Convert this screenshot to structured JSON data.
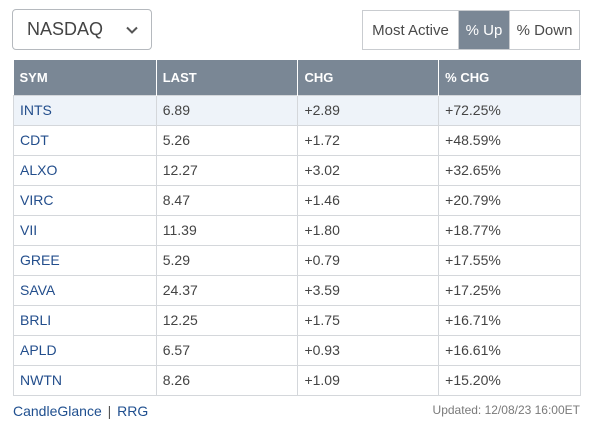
{
  "exchange_select": {
    "value": "NASDAQ"
  },
  "toggle": {
    "most_active": "Most Active",
    "pct_up": "% Up",
    "pct_down": "% Down",
    "active": "pct_up"
  },
  "table": {
    "headers": {
      "sym": "SYM",
      "last": "LAST",
      "chg": "CHG",
      "pct_chg": "% CHG"
    },
    "rows": [
      {
        "sym": "INTS",
        "last": "6.89",
        "chg": "+2.89",
        "pct": "+72.25%"
      },
      {
        "sym": "CDT",
        "last": "5.26",
        "chg": "+1.72",
        "pct": "+48.59%"
      },
      {
        "sym": "ALXO",
        "last": "12.27",
        "chg": "+3.02",
        "pct": "+32.65%"
      },
      {
        "sym": "VIRC",
        "last": "8.47",
        "chg": "+1.46",
        "pct": "+20.79%"
      },
      {
        "sym": "VII",
        "last": "11.39",
        "chg": "+1.80",
        "pct": "+18.77%"
      },
      {
        "sym": "GREE",
        "last": "5.29",
        "chg": "+0.79",
        "pct": "+17.55%"
      },
      {
        "sym": "SAVA",
        "last": "24.37",
        "chg": "+3.59",
        "pct": "+17.25%"
      },
      {
        "sym": "BRLI",
        "last": "12.25",
        "chg": "+1.75",
        "pct": "+16.71%"
      },
      {
        "sym": "APLD",
        "last": "6.57",
        "chg": "+0.93",
        "pct": "+16.61%"
      },
      {
        "sym": "NWTN",
        "last": "8.26",
        "chg": "+1.09",
        "pct": "+15.20%"
      }
    ]
  },
  "footer": {
    "candleglance": "CandleGlance",
    "separator": "|",
    "rrg": "RRG",
    "updated": "Updated: 12/08/23 16:00ET"
  },
  "colors": {
    "header_bg": "#7a8795",
    "positive": "#2e7a2e",
    "symbol_link": "#234e8c"
  }
}
